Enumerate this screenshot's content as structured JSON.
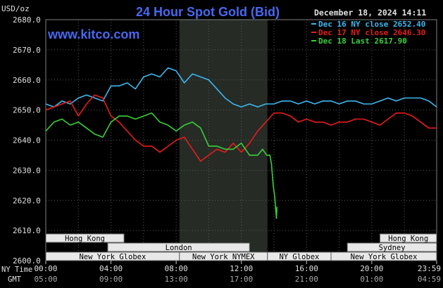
{
  "chart_data": {
    "type": "line",
    "title": "24 Hour Spot Gold (Bid)",
    "site": "www.kitco.com",
    "timestamp": "December 18, 2024 14:11",
    "ylabel": "USD/oz",
    "ylim": [
      2600,
      2680
    ],
    "y_ticks": [
      "2680.0",
      "2670.0",
      "2660.0",
      "2650.0",
      "2640.0",
      "2630.0",
      "2620.0",
      "2610.0",
      "2600.0"
    ],
    "x_row_labels": [
      "NY Time",
      "GMT"
    ],
    "x_ticks_ny": [
      "00:00",
      "04:00",
      "08:00",
      "12:00",
      "16:00",
      "20:00",
      "23:59"
    ],
    "x_ticks_gmt": [
      "05:00",
      "09:00",
      "13:00",
      "17:00",
      "21:00",
      "01:00",
      "04:59"
    ],
    "grid": true,
    "legend_position": "top-right",
    "highlight_hours": [
      8.2,
      13.6
    ],
    "colors": {
      "dec16": "#3cb8f0",
      "dec17": "#e81c1c",
      "dec18": "#38d038",
      "title": "#4868f0",
      "site": "#4868f0",
      "grid": "#5a5a5a",
      "highlight": "#262b26",
      "axis_text": "#e0e0e0",
      "session_fill": "#e8e8e8",
      "session_text": "#000000"
    },
    "series": [
      {
        "name": "Dec 16 NY close 2652.40",
        "key": "dec16",
        "x": [
          0,
          0.5,
          1,
          1.5,
          2,
          2.5,
          3,
          3.5,
          4,
          4.5,
          5,
          5.5,
          6,
          6.5,
          7,
          7.5,
          8,
          8.5,
          9,
          9.5,
          10,
          10.5,
          11,
          11.5,
          12,
          12.5,
          13,
          13.5,
          14,
          14.5,
          15,
          15.5,
          16,
          16.5,
          17,
          17.5,
          18,
          18.5,
          19,
          19.5,
          20,
          20.5,
          21,
          21.5,
          22,
          22.5,
          23,
          23.5,
          23.98
        ],
        "y": [
          2652,
          2651,
          2653,
          2652,
          2654,
          2655,
          2654,
          2653,
          2658,
          2658,
          2659,
          2657,
          2661,
          2662,
          2661,
          2664,
          2663,
          2659,
          2662,
          2661,
          2660,
          2657,
          2654,
          2652,
          2651,
          2652,
          2651,
          2652,
          2652,
          2653,
          2653,
          2652,
          2653,
          2652,
          2653,
          2653,
          2652,
          2653,
          2653,
          2652,
          2652,
          2653,
          2654,
          2653,
          2654,
          2654,
          2654,
          2653,
          2651
        ]
      },
      {
        "name": "Dec 17 NY close 2646.30",
        "key": "dec17",
        "x": [
          0,
          0.5,
          1,
          1.5,
          2,
          2.5,
          3,
          3.5,
          4,
          4.5,
          5,
          5.5,
          6,
          6.5,
          7,
          7.5,
          8,
          8.5,
          9,
          9.5,
          10,
          10.5,
          11,
          11.5,
          12,
          12.5,
          13,
          13.5,
          14,
          14.5,
          15,
          15.5,
          16,
          16.5,
          17,
          17.5,
          18,
          18.5,
          19,
          19.5,
          20,
          20.5,
          21,
          21.5,
          22,
          22.5,
          23,
          23.5,
          23.98
        ],
        "y": [
          2650,
          2651,
          2652,
          2653,
          2648,
          2652,
          2655,
          2654,
          2648,
          2646,
          2643,
          2640,
          2638,
          2638,
          2636,
          2638,
          2640,
          2641,
          2637,
          2633,
          2635,
          2637,
          2636,
          2639,
          2636,
          2639,
          2643,
          2646,
          2649,
          2649,
          2648,
          2646,
          2647,
          2646,
          2646,
          2645,
          2646,
          2646,
          2647,
          2647,
          2646,
          2645,
          2647,
          2649,
          2649,
          2648,
          2646,
          2644,
          2644
        ]
      },
      {
        "name": "Dec 18 Last 2617.90",
        "key": "dec18",
        "x": [
          0,
          0.5,
          1,
          1.5,
          2,
          2.5,
          3,
          3.5,
          4,
          4.5,
          5,
          5.5,
          6,
          6.5,
          7,
          7.5,
          8,
          8.5,
          9,
          9.5,
          10,
          10.5,
          11,
          11.5,
          12,
          12.5,
          13,
          13.3,
          13.55,
          13.75,
          13.85,
          13.95,
          14.05,
          14.15,
          14.18
        ],
        "y": [
          2643,
          2646,
          2647,
          2645,
          2646,
          2644,
          2642,
          2641,
          2646,
          2648,
          2648,
          2647,
          2648,
          2649,
          2646,
          2645,
          2643,
          2645,
          2646,
          2644,
          2638,
          2638,
          2637,
          2637,
          2639,
          2635,
          2635,
          2637,
          2635,
          2635,
          2632,
          2625,
          2621,
          2614,
          2617.9
        ]
      }
    ]
  },
  "sessions": {
    "row1": [
      {
        "label": "Hong Kong",
        "start": 0,
        "end": 4.8
      },
      {
        "label": "Hong Kong",
        "start": 20.5,
        "end": 23.98
      }
    ],
    "row2": [
      {
        "label": "London",
        "start": 3.8,
        "end": 12.5
      },
      {
        "label": "Sydney",
        "start": 18.5,
        "end": 23.98
      }
    ],
    "row3": [
      {
        "label": "New York Globex",
        "start": 0,
        "end": 8.2
      },
      {
        "label": "New York NYMEX",
        "start": 8.2,
        "end": 13.6
      },
      {
        "label": "NY Globex",
        "start": 13.6,
        "end": 17.5
      },
      {
        "label": "New York Globex",
        "start": 17.5,
        "end": 23.98
      }
    ]
  }
}
